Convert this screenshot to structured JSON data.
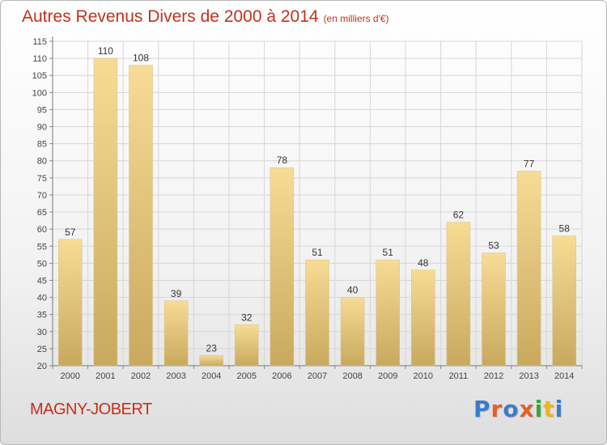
{
  "title": "Autres Revenus Divers de 2000 à 2014",
  "title_unit": "(en milliers d'€)",
  "commune": "MAGNY-JOBERT",
  "logo": {
    "text": "Proxiti",
    "colors": [
      "#3a7ccb",
      "#e4612a",
      "#3a7ccb",
      "#e4612a",
      "#3aa63a",
      "#f0b323",
      "#3a7ccb"
    ]
  },
  "colors": {
    "title": "#c3311b",
    "bar_light": "#f7dc96",
    "bar_dark": "#c8a95e",
    "grid": "#d6d6d6",
    "axis_text": "#444444"
  },
  "chart_data": {
    "type": "bar",
    "categories": [
      "2000",
      "2001",
      "2002",
      "2003",
      "2004",
      "2005",
      "2006",
      "2007",
      "2008",
      "2009",
      "2010",
      "2011",
      "2012",
      "2013",
      "2014"
    ],
    "values": [
      57,
      110,
      108,
      39,
      23,
      32,
      78,
      51,
      40,
      51,
      48,
      62,
      53,
      77,
      58
    ],
    "ylim": [
      20,
      115
    ],
    "ytick_step": 5,
    "grid": true,
    "xlabel": "",
    "ylabel": ""
  }
}
